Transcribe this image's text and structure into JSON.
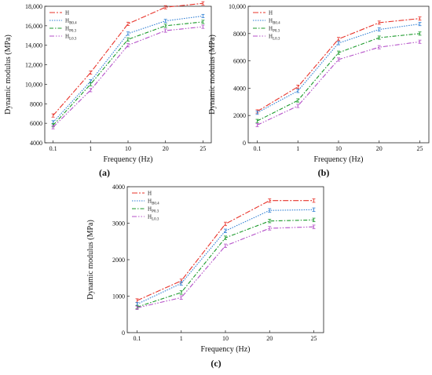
{
  "colors": {
    "H": "#e8332a",
    "HB0.4": "#2f7fd4",
    "HP0.3": "#1a9a2a",
    "HL0.3": "#b44fc8"
  },
  "x_axis_label": "Frequency (Hz)",
  "y_axis_label": "Dynamic modulus (MPa)",
  "chart_data": [
    {
      "type": "line",
      "caption": "(a)",
      "categories": [
        "0.1",
        "1",
        "10",
        "20",
        "25"
      ],
      "xlabel": "Frequency (Hz)",
      "ylabel": "Dynamic modulus (MPa)",
      "ylim": [
        4000,
        18000
      ],
      "yticks": [
        "4000",
        "6000",
        "8000",
        "10,000",
        "12,000",
        "14,000",
        "16,000",
        "18,000"
      ],
      "legend_position": "top-left",
      "series": [
        {
          "name": "H",
          "key": "H",
          "legend_base": "H",
          "legend_sub": "",
          "values": [
            6800,
            11200,
            16200,
            17900,
            18300
          ]
        },
        {
          "name": "HB0.4",
          "key": "HB0.4",
          "legend_base": "H",
          "legend_sub": "B0.4",
          "values": [
            6100,
            10300,
            15200,
            16500,
            17000
          ]
        },
        {
          "name": "HP0.3",
          "key": "HP0.3",
          "legend_base": "H",
          "legend_sub": "P0.3",
          "values": [
            5800,
            10000,
            14600,
            16000,
            16400
          ]
        },
        {
          "name": "HL0.3",
          "key": "HL0.3",
          "legend_base": "H",
          "legend_sub": "L0.3",
          "values": [
            5600,
            9400,
            14000,
            15500,
            15900
          ]
        }
      ]
    },
    {
      "type": "line",
      "caption": "(b)",
      "categories": [
        "0.1",
        "1",
        "10",
        "20",
        "25"
      ],
      "xlabel": "Frequency (Hz)",
      "ylabel": "Dynamic modulus (MPa)",
      "ylim": [
        0,
        10000
      ],
      "yticks": [
        "0",
        "2000",
        "4000",
        "6000",
        "8000",
        "10,000"
      ],
      "legend_position": "top-left",
      "series": [
        {
          "name": "H",
          "key": "H",
          "legend_base": "H",
          "legend_sub": "",
          "values": [
            2300,
            4100,
            7600,
            8800,
            9100
          ]
        },
        {
          "name": "HB0.4",
          "key": "HB0.4",
          "legend_base": "H",
          "legend_sub": "B0.4",
          "values": [
            2200,
            3800,
            7300,
            8300,
            8700
          ]
        },
        {
          "name": "HP0.3",
          "key": "HP0.3",
          "legend_base": "H",
          "legend_sub": "P0.3",
          "values": [
            1600,
            3100,
            6600,
            7700,
            8000
          ]
        },
        {
          "name": "HL0.3",
          "key": "HL0.3",
          "legend_base": "H",
          "legend_sub": "L0.3",
          "values": [
            1300,
            2700,
            6100,
            7000,
            7400
          ]
        }
      ]
    },
    {
      "type": "line",
      "caption": "(c)",
      "categories": [
        "0.1",
        "1",
        "10",
        "20",
        "25"
      ],
      "xlabel": "Frequency (Hz)",
      "ylabel": "Dynamic modulus (MPa)",
      "ylim": [
        0,
        4000
      ],
      "yticks": [
        "0",
        "1000",
        "2000",
        "3000",
        "4000"
      ],
      "legend_position": "top-left",
      "series": [
        {
          "name": "H",
          "key": "H",
          "legend_base": "H",
          "legend_sub": "",
          "values": [
            880,
            1420,
            2980,
            3620,
            3620
          ]
        },
        {
          "name": "HB0.4",
          "key": "HB0.4",
          "legend_base": "H",
          "legend_sub": "B0.4",
          "values": [
            780,
            1350,
            2790,
            3350,
            3370
          ]
        },
        {
          "name": "HP0.3",
          "key": "HP0.3",
          "legend_base": "H",
          "legend_sub": "P0.3",
          "values": [
            700,
            1100,
            2600,
            3060,
            3090
          ]
        },
        {
          "name": "HL0.3",
          "key": "HL0.3",
          "legend_base": "H",
          "legend_sub": "L0.3",
          "values": [
            680,
            960,
            2380,
            2860,
            2900
          ]
        }
      ]
    }
  ]
}
